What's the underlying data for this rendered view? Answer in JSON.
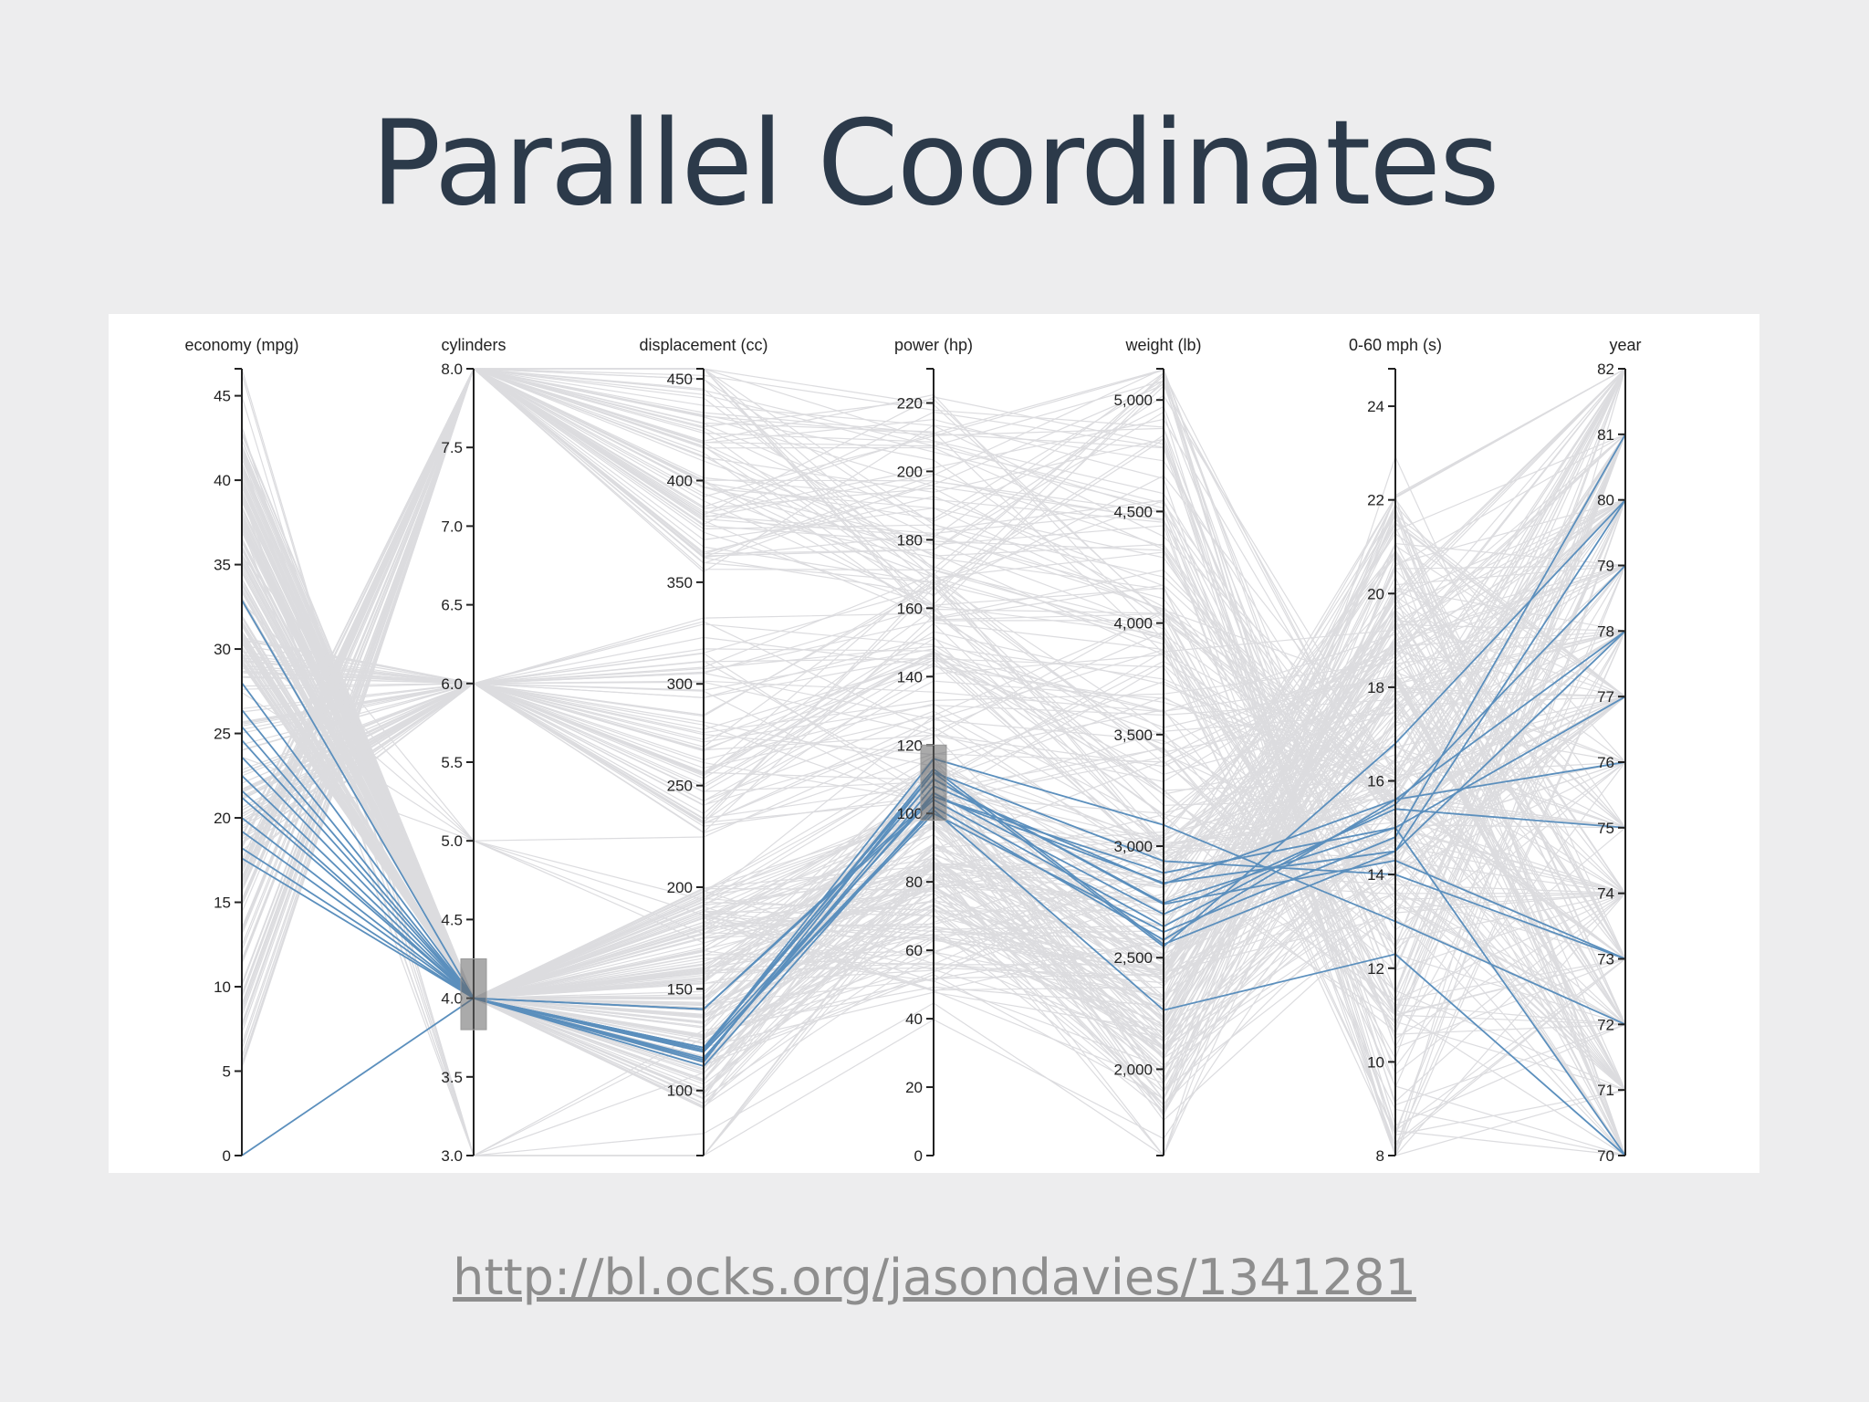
{
  "slide": {
    "title": "Parallel Coordinates",
    "source_url": "http://bl.ocks.org/jasondavies/1341281"
  },
  "chart_data": {
    "type": "parallel-coordinates",
    "dimensions": [
      {
        "key": "economy",
        "label": "economy (mpg)",
        "range": [
          0,
          46.6
        ],
        "ticks": [
          0,
          5,
          10,
          15,
          20,
          25,
          30,
          35,
          40,
          45
        ],
        "tick_labels": [
          "0",
          "5",
          "10",
          "15",
          "20",
          "25",
          "30",
          "35",
          "40",
          "45"
        ]
      },
      {
        "key": "cylinders",
        "label": "cylinders",
        "range": [
          3,
          8
        ],
        "ticks": [
          3,
          3.5,
          4,
          4.5,
          5,
          5.5,
          6,
          6.5,
          7,
          7.5,
          8
        ],
        "tick_labels": [
          "3.0",
          "3.5",
          "4.0",
          "4.5",
          "5.0",
          "5.5",
          "6.0",
          "6.5",
          "7.0",
          "7.5",
          "8.0"
        ]
      },
      {
        "key": "displacement",
        "label": "displacement (cc)",
        "range": [
          68,
          455
        ],
        "ticks": [
          100,
          150,
          200,
          250,
          300,
          350,
          400,
          450
        ],
        "tick_labels": [
          "100",
          "150",
          "200",
          "250",
          "300",
          "350",
          "400",
          "450"
        ]
      },
      {
        "key": "power",
        "label": "power (hp)",
        "range": [
          0,
          230
        ],
        "ticks": [
          0,
          20,
          40,
          60,
          80,
          100,
          120,
          140,
          160,
          180,
          200,
          220
        ],
        "tick_labels": [
          "0",
          "20",
          "40",
          "60",
          "80",
          "100",
          "120",
          "140",
          "160",
          "180",
          "200",
          "220"
        ]
      },
      {
        "key": "weight",
        "label": "weight (lb)",
        "range": [
          1613,
          5140
        ],
        "ticks": [
          2000,
          2500,
          3000,
          3500,
          4000,
          4500,
          5000
        ],
        "tick_labels": [
          "2,000",
          "2,500",
          "3,000",
          "3,500",
          "4,000",
          "4,500",
          "5,000"
        ]
      },
      {
        "key": "acceleration",
        "label": "0-60 mph (s)",
        "range": [
          8,
          24.8
        ],
        "ticks": [
          8,
          10,
          12,
          14,
          16,
          18,
          20,
          22,
          24
        ],
        "tick_labels": [
          "8",
          "10",
          "12",
          "14",
          "16",
          "18",
          "20",
          "22",
          "24"
        ]
      },
      {
        "key": "year",
        "label": "year",
        "range": [
          70,
          82
        ],
        "ticks": [
          70,
          71,
          72,
          73,
          74,
          75,
          76,
          77,
          78,
          79,
          80,
          81,
          82
        ],
        "tick_labels": [
          "70",
          "71",
          "72",
          "73",
          "74",
          "75",
          "76",
          "77",
          "78",
          "79",
          "80",
          "81",
          "82"
        ]
      }
    ],
    "brushes": [
      {
        "dimension": "cylinders",
        "extent": [
          3.8,
          4.25
        ]
      },
      {
        "dimension": "power",
        "extent": [
          98,
          120
        ]
      }
    ],
    "highlighted_series": [
      [
        32.9,
        4,
        119,
        100,
        2615,
        14.8,
        81
      ],
      [
        28,
        4,
        120,
        113,
        2560,
        14.5,
        80
      ],
      [
        26.4,
        4,
        140,
        105,
        2835,
        14.5,
        78
      ],
      [
        25.4,
        4,
        112,
        102,
        2580,
        15.6,
        78
      ],
      [
        24.6,
        4,
        121,
        110,
        2745,
        15.0,
        77
      ],
      [
        23.6,
        4,
        115,
        108,
        2830,
        15.6,
        76
      ],
      [
        22.5,
        4,
        116,
        106,
        2695,
        15.4,
        75
      ],
      [
        21.6,
        4,
        114,
        112,
        2550,
        16.8,
        80
      ],
      [
        21.2,
        4,
        121,
        112,
        2933,
        14.0,
        73
      ],
      [
        20.0,
        4,
        120,
        116,
        3095,
        13.0,
        72
      ],
      [
        19.2,
        4,
        120,
        105,
        2880,
        15.0,
        70
      ],
      [
        18.2,
        4,
        121,
        110,
        2740,
        14.3,
        73
      ],
      [
        17.6,
        4,
        140,
        104,
        2640,
        15.5,
        79
      ],
      [
        0,
        4,
        119,
        101,
        2265,
        12.3,
        70
      ]
    ],
    "background_series_description": "remaining cars drawn in light grey"
  }
}
